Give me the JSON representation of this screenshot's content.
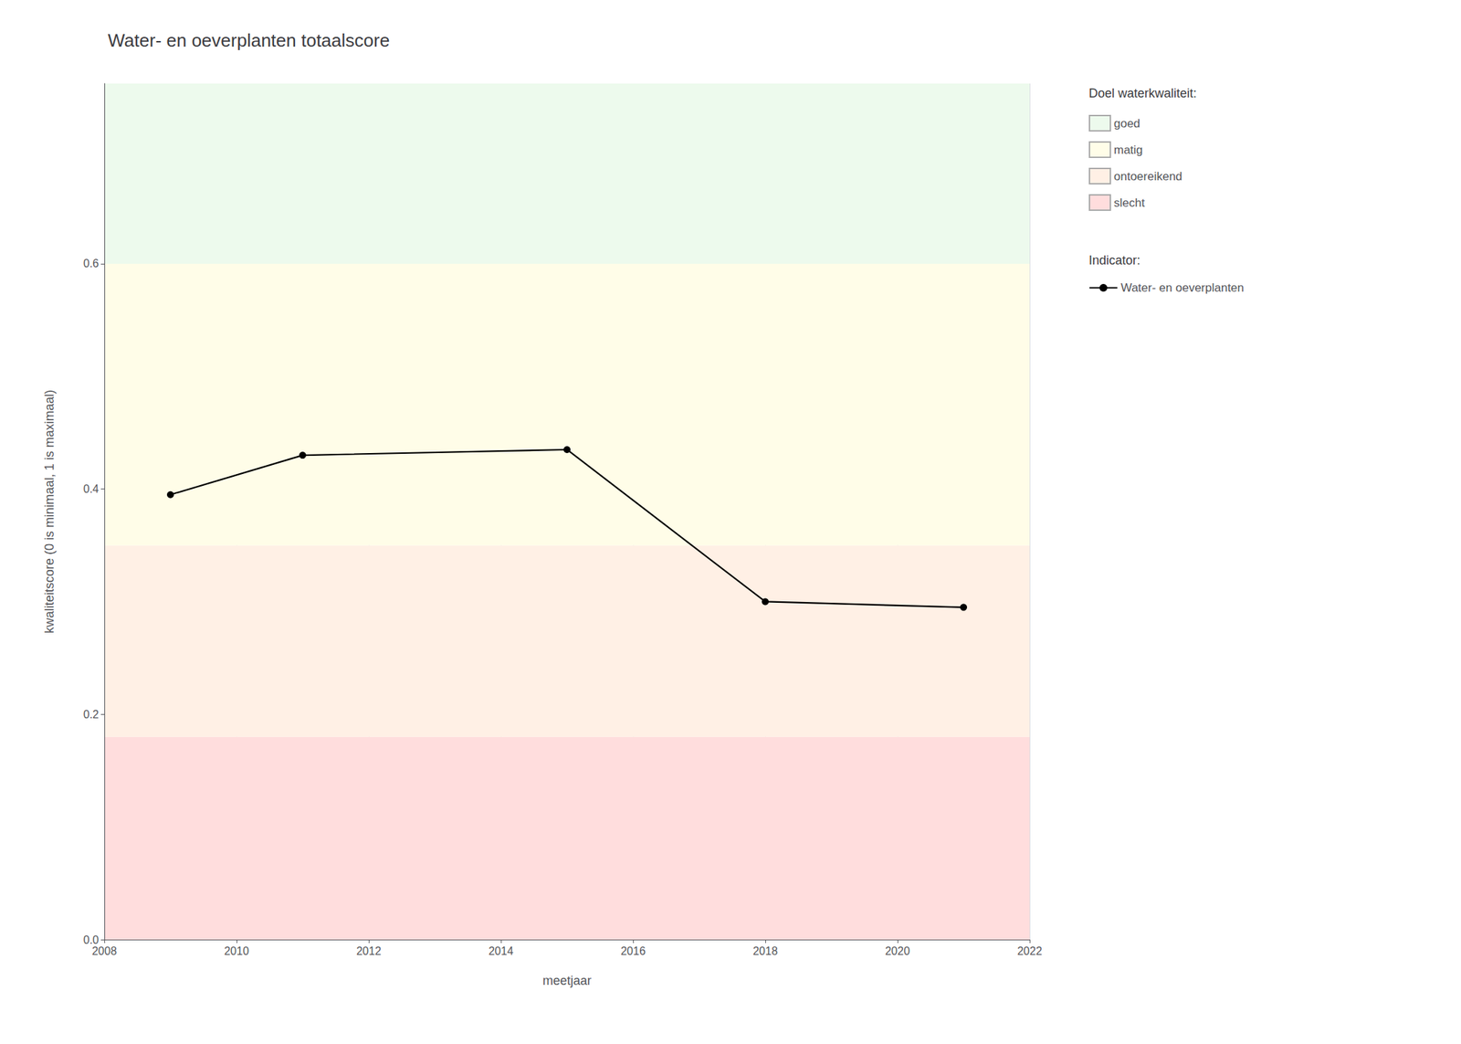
{
  "chart_data": {
    "type": "line",
    "title": "Water- en oeverplanten totaalscore",
    "xlabel": "meetjaar",
    "ylabel": "kwaliteitscore (0 is minimaal, 1 is maximaal)",
    "xlim": [
      2008,
      2022
    ],
    "ylim": [
      0,
      0.76
    ],
    "xticks": [
      2008,
      2010,
      2012,
      2014,
      2016,
      2018,
      2020,
      2022
    ],
    "yticks": [
      {
        "value": 0,
        "label": "0.0"
      },
      0.2,
      0.4,
      0.6
    ],
    "x": [
      2009,
      2011,
      2015,
      2018,
      2021
    ],
    "series": [
      {
        "name": "Water- en oeverplanten",
        "color": "#000000",
        "marker": "circle",
        "values": [
          0.395,
          0.43,
          0.435,
          0.3,
          0.295
        ]
      }
    ],
    "bands": [
      {
        "name": "slecht",
        "ymin": 0.0,
        "ymax": 0.18,
        "color": "#FFDDDD"
      },
      {
        "name": "ontoereikend",
        "ymin": 0.18,
        "ymax": 0.35,
        "color": "#FFF0E5"
      },
      {
        "name": "matig",
        "ymin": 0.35,
        "ymax": 0.6,
        "color": "#FFFDE8"
      },
      {
        "name": "goed",
        "ymin": 0.6,
        "ymax": 0.76,
        "color": "#EDFAED"
      }
    ],
    "band_legend_title": "Doel waterkwaliteit:",
    "series_legend_title": "Indicator:",
    "grid": true,
    "legend": "right"
  }
}
